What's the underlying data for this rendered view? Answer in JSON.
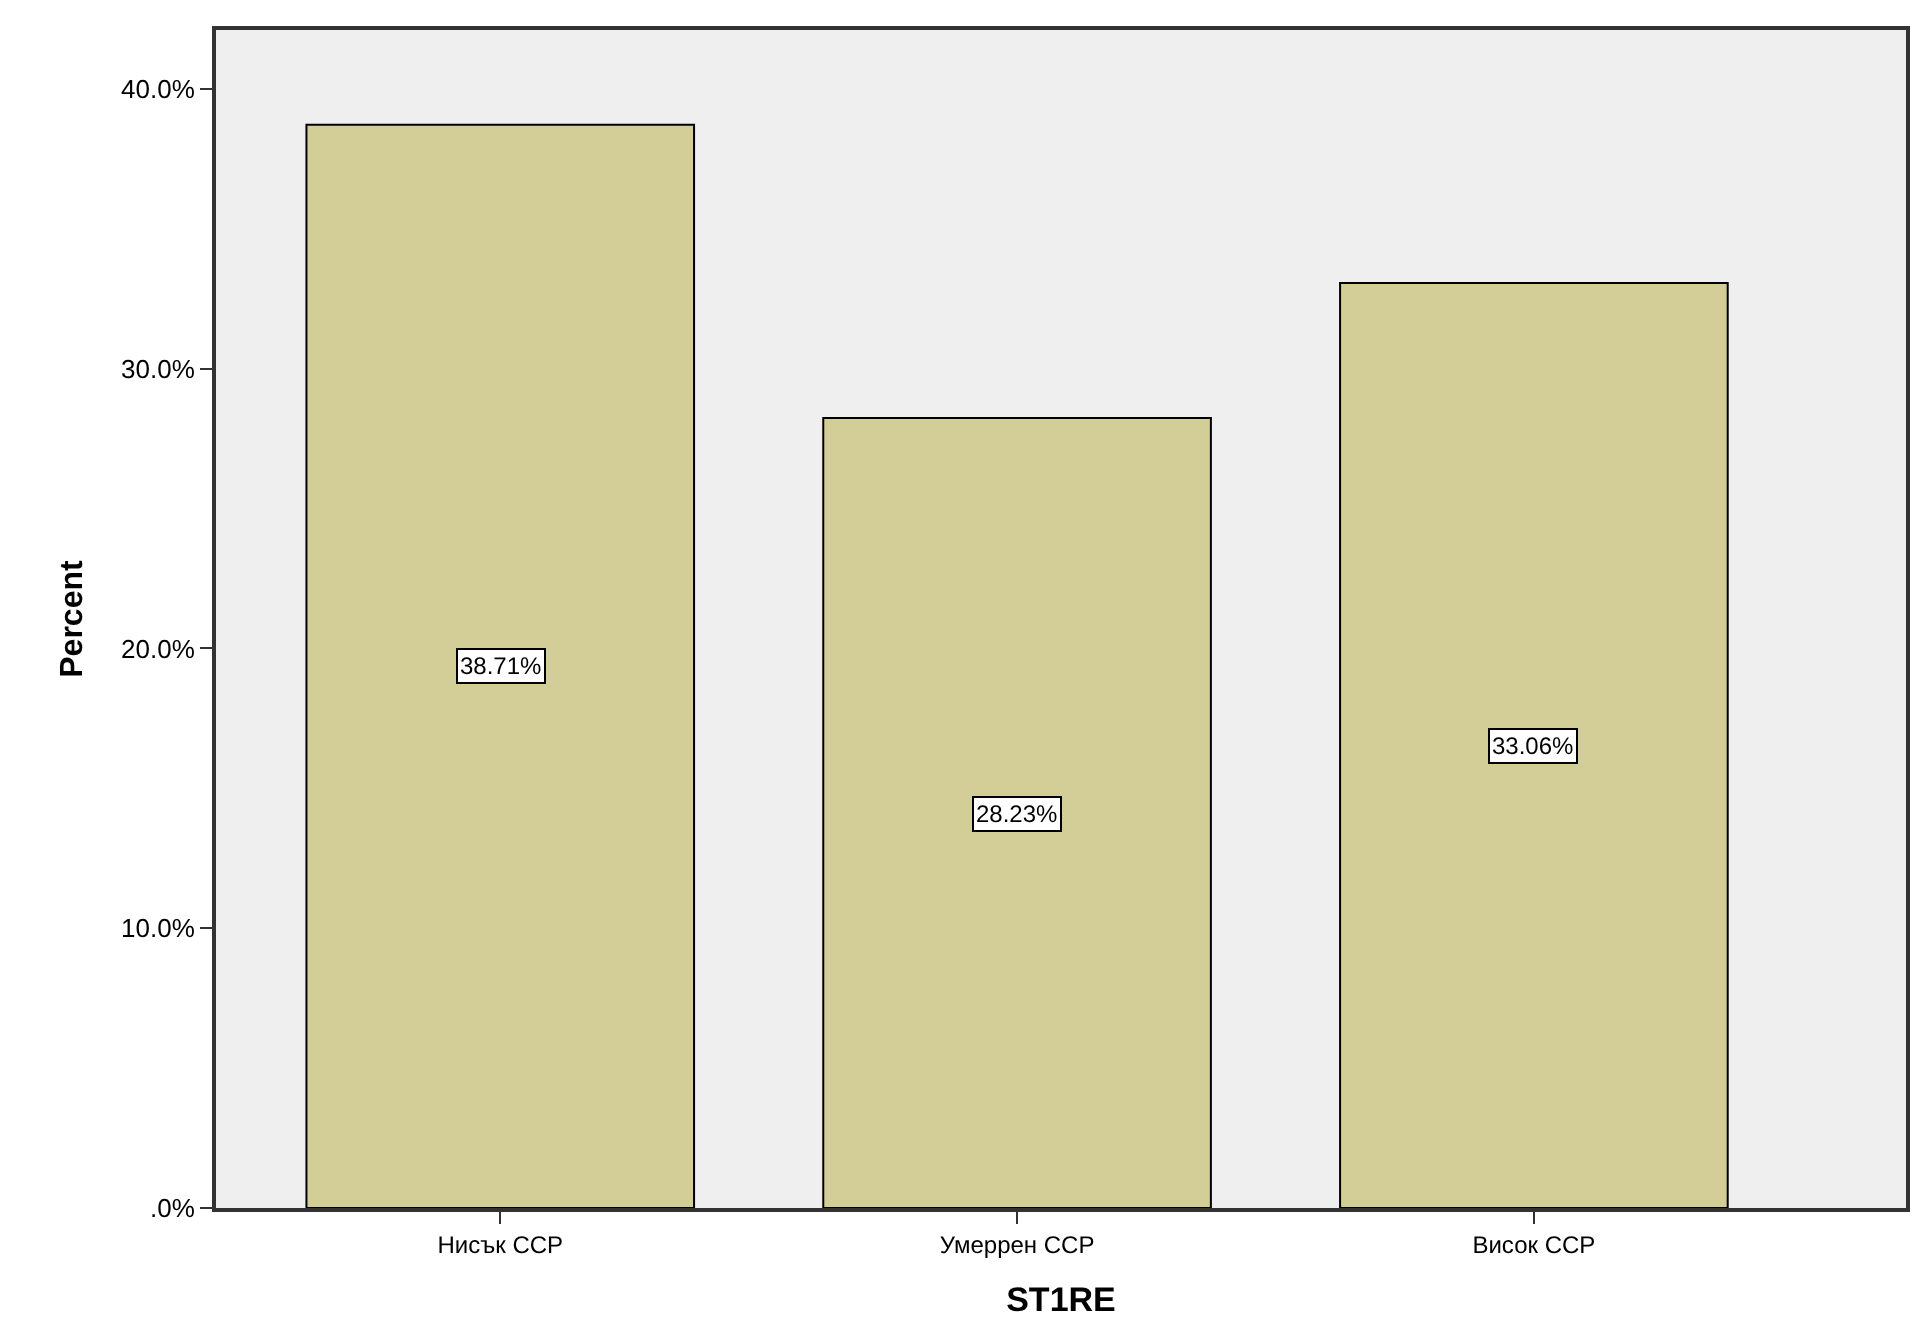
{
  "chart_data": {
    "type": "bar",
    "xlabel": "ST1RE",
    "ylabel": "Percent",
    "categories": [
      "Нисък ССР",
      "Умеррен ССР",
      "Висок ССР"
    ],
    "values": [
      38.71,
      28.23,
      33.06
    ],
    "value_labels": [
      "38.71%",
      "28.23%",
      "33.06%"
    ],
    "color": "#d3ce97",
    "ylim": [
      0,
      42.1
    ],
    "yticks": [
      {
        "value": 0,
        "label": ".0%"
      },
      {
        "value": 10,
        "label": "10.0%"
      },
      {
        "value": 20,
        "label": "20.0%"
      },
      {
        "value": 30,
        "label": "30.0%"
      },
      {
        "value": 40,
        "label": "40.0%"
      }
    ],
    "grid": false
  }
}
